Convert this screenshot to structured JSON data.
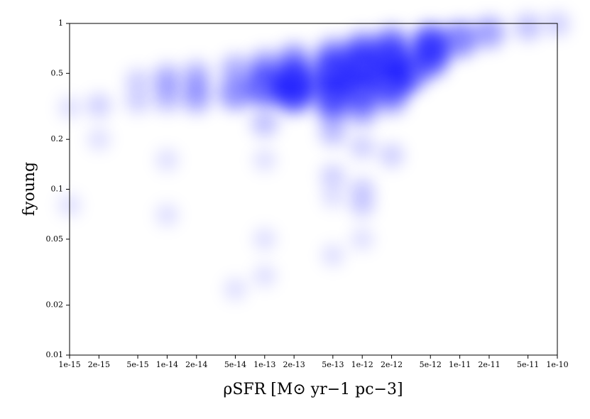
{
  "chart_data": {
    "type": "scatter",
    "xlabel": "ρSFR [M⊙ yr−1 pc−3]",
    "ylabel": "fyoung",
    "xscale": "log",
    "yscale": "log",
    "xlim": [
      1e-15,
      1e-10
    ],
    "ylim": [
      0.01,
      1
    ],
    "xticks": [
      {
        "value": 1e-15,
        "label": "1e-15"
      },
      {
        "value": 2e-15,
        "label": "2e-15"
      },
      {
        "value": 5e-15,
        "label": "5e-15"
      },
      {
        "value": 1e-14,
        "label": "1e-14"
      },
      {
        "value": 2e-14,
        "label": "2e-14"
      },
      {
        "value": 5e-14,
        "label": "5e-14"
      },
      {
        "value": 1e-13,
        "label": "1e-13"
      },
      {
        "value": 2e-13,
        "label": "2e-13"
      },
      {
        "value": 5e-13,
        "label": "5e-13"
      },
      {
        "value": 1e-12,
        "label": "1e-12"
      },
      {
        "value": 2e-12,
        "label": "2e-12"
      },
      {
        "value": 5e-12,
        "label": "5e-12"
      },
      {
        "value": 1e-11,
        "label": "1e-11"
      },
      {
        "value": 2e-11,
        "label": "2e-11"
      },
      {
        "value": 5e-11,
        "label": "5e-11"
      },
      {
        "value": 1e-10,
        "label": "1e-10"
      }
    ],
    "yticks": [
      0.01,
      0.02,
      0.05,
      0.1,
      0.2,
      0.5,
      1
    ],
    "color": "#0000ff",
    "x": [
      1e-13,
      2e-13,
      5e-13,
      1e-12,
      2e-12,
      5e-12,
      1e-11,
      2e-11,
      5e-11,
      1e-10,
      2e-13,
      5e-13,
      1e-12,
      2e-12,
      3e-12,
      5e-12,
      1e-12,
      2e-12,
      5e-13,
      5e-14,
      2e-14,
      1e-14,
      5e-15,
      2e-15,
      1e-15,
      1e-14,
      2e-14,
      5e-14,
      1e-13,
      2e-13,
      5e-13,
      1e-12,
      2e-12,
      5e-12,
      1e-14,
      5e-15,
      2e-14,
      1e-13,
      5e-13,
      1e-12,
      2e-12,
      1e-13,
      5e-13,
      1e-12,
      1e-12,
      5e-13,
      1e-14,
      1e-14,
      1e-13,
      1e-13,
      5e-14,
      5e-13,
      1e-15,
      2e-15,
      1e-12
    ],
    "y": [
      0.42,
      0.45,
      0.5,
      0.55,
      0.6,
      0.7,
      0.8,
      0.88,
      0.95,
      0.99,
      0.38,
      0.38,
      0.4,
      0.45,
      0.5,
      0.6,
      0.3,
      0.35,
      0.3,
      0.38,
      0.35,
      0.35,
      0.34,
      0.32,
      0.31,
      0.48,
      0.5,
      0.53,
      0.56,
      0.6,
      0.65,
      0.7,
      0.75,
      0.8,
      0.42,
      0.45,
      0.42,
      0.25,
      0.22,
      0.18,
      0.16,
      0.15,
      0.12,
      0.1,
      0.08,
      0.09,
      0.15,
      0.07,
      0.05,
      0.03,
      0.025,
      0.04,
      0.08,
      0.2,
      0.05
    ],
    "density": [
      9,
      10,
      10,
      10,
      9,
      8,
      7,
      5,
      3,
      2,
      9,
      9,
      9,
      9,
      8,
      7,
      5,
      5,
      5,
      6,
      4,
      3,
      2,
      2,
      1,
      3,
      3,
      4,
      5,
      6,
      6,
      7,
      7,
      6,
      2,
      2,
      3,
      3,
      3,
      2,
      2,
      1,
      2,
      2,
      2,
      1,
      1,
      1,
      1,
      1,
      1,
      1,
      1,
      1,
      1
    ]
  }
}
